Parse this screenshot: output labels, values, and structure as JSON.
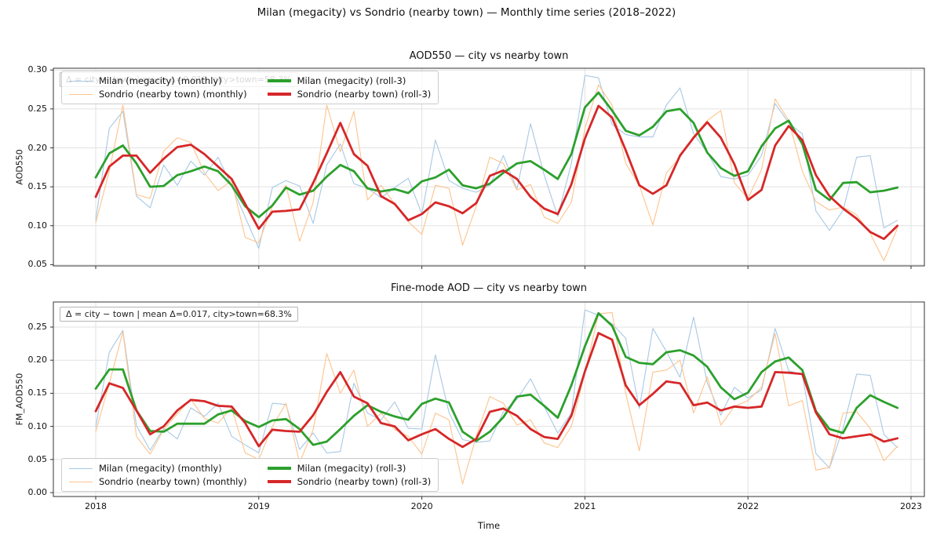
{
  "chart_data": {
    "type": "line",
    "suptitle": "Milan (megacity) vs Sondrio (nearby town) — Monthly time series (2018–2022)",
    "xlabel": "Time",
    "x": {
      "start": "2018-01",
      "freq": "monthly",
      "n": 60
    },
    "xticks": [
      "2018",
      "2019",
      "2020",
      "2021",
      "2022",
      "2023"
    ],
    "grid": true,
    "legend_entries": [
      "Milan (megacity) (monthly)",
      "Sondrio (nearby town) (monthly)",
      "Milan (megacity) (roll-3)",
      "Sondrio (nearby town) (roll-3)"
    ],
    "colors": {
      "milan_monthly": "#a8c8e4",
      "sondrio_monthly": "#fdc38d",
      "milan_roll3": "#2ca02c",
      "sondrio_roll3": "#d62728"
    },
    "charts": [
      {
        "key": "aod550",
        "title": "AOD550 — city vs nearby town",
        "ylabel": "AOD550",
        "yticks": [
          0.05,
          0.1,
          0.15,
          0.2,
          0.25,
          0.3
        ],
        "legend_position": "upper-left",
        "annotation": "Δ = city − town | mean Δ=0.015, city>town=58.3%",
        "annotation_note": "partially hidden behind legend",
        "series": [
          {
            "name": "Milan (megacity) (monthly)",
            "color_key": "milan_monthly",
            "width": 1.1,
            "values": [
              0.108,
              0.225,
              0.247,
              0.138,
              0.123,
              0.178,
              0.152,
              0.183,
              0.165,
              0.188,
              0.151,
              0.111,
              0.071,
              0.149,
              0.158,
              0.151,
              0.103,
              0.178,
              0.205,
              0.154,
              0.148,
              0.136,
              0.149,
              0.161,
              0.115,
              0.21,
              0.158,
              0.148,
              0.143,
              0.152,
              0.19,
              0.147,
              0.231,
              0.165,
              0.112,
              0.18,
              0.293,
              0.29,
              0.23,
              0.217,
              0.214,
              0.214,
              0.255,
              0.277,
              0.218,
              0.194,
              0.163,
              0.16,
              0.165,
              0.19,
              0.257,
              0.232,
              0.218,
              0.119,
              0.094,
              0.12,
              0.188,
              0.19,
              0.097,
              0.107
            ]
          },
          {
            "name": "Sondrio (nearby town) (monthly)",
            "color_key": "sondrio_monthly",
            "width": 1.1,
            "values": [
              0.104,
              0.17,
              0.255,
              0.14,
              0.135,
              0.196,
              0.213,
              0.207,
              0.168,
              0.145,
              0.158,
              0.085,
              0.078,
              0.125,
              0.152,
              0.08,
              0.13,
              0.255,
              0.195,
              0.247,
              0.133,
              0.152,
              0.128,
              0.105,
              0.089,
              0.152,
              0.148,
              0.075,
              0.125,
              0.188,
              0.18,
              0.146,
              0.153,
              0.111,
              0.103,
              0.13,
              0.225,
              0.281,
              0.255,
              0.18,
              0.152,
              0.101,
              0.168,
              0.188,
              0.215,
              0.235,
              0.248,
              0.155,
              0.135,
              0.172,
              0.263,
              0.235,
              0.17,
              0.131,
              0.12,
              0.124,
              0.114,
              0.09,
              0.055,
              0.097
            ]
          },
          {
            "name": "Milan (megacity) (roll-3)",
            "color_key": "milan_roll3",
            "width": 2.8,
            "values": [
              0.162,
              0.193,
              0.203,
              0.18,
              0.15,
              0.151,
              0.165,
              0.17,
              0.176,
              0.17,
              0.152,
              0.125,
              0.111,
              0.126,
              0.149,
              0.14,
              0.145,
              0.163,
              0.178,
              0.17,
              0.148,
              0.144,
              0.147,
              0.142,
              0.157,
              0.162,
              0.172,
              0.152,
              0.148,
              0.154,
              0.168,
              0.18,
              0.183,
              0.172,
              0.16,
              0.192,
              0.252,
              0.271,
              0.248,
              0.222,
              0.216,
              0.227,
              0.247,
              0.25,
              0.232,
              0.194,
              0.174,
              0.164,
              0.17,
              0.202,
              0.225,
              0.235,
              0.205,
              0.146,
              0.133,
              0.155,
              0.156,
              0.143,
              0.145,
              0.149
            ]
          },
          {
            "name": "Sondrio (nearby town) (roll-3)",
            "color_key": "sondrio_roll3",
            "width": 2.8,
            "values": [
              0.137,
              0.176,
              0.19,
              0.19,
              0.168,
              0.186,
              0.201,
              0.204,
              0.192,
              0.176,
              0.16,
              0.128,
              0.096,
              0.118,
              0.119,
              0.121,
              0.155,
              0.193,
              0.232,
              0.192,
              0.177,
              0.138,
              0.128,
              0.107,
              0.115,
              0.13,
              0.125,
              0.116,
              0.129,
              0.164,
              0.171,
              0.16,
              0.137,
              0.122,
              0.115,
              0.153,
              0.212,
              0.254,
              0.239,
              0.197,
              0.152,
              0.141,
              0.152,
              0.19,
              0.213,
              0.233,
              0.213,
              0.179,
              0.133,
              0.146,
              0.203,
              0.228,
              0.21,
              0.165,
              0.138,
              0.122,
              0.109,
              0.092,
              0.083,
              0.1
            ]
          }
        ]
      },
      {
        "key": "fm_aod550",
        "title": "Fine-mode AOD — city vs nearby town",
        "ylabel": "FM_AOD550",
        "yticks": [
          0.0,
          0.05,
          0.1,
          0.15,
          0.2,
          0.25
        ],
        "legend_position": "lower-left",
        "annotation": "Δ = city − town | mean Δ=0.017, city>town=68.3%",
        "annotation_note": "fully visible, upper-left",
        "series": [
          {
            "name": "Milan (megacity) (monthly)",
            "color_key": "milan_monthly",
            "width": 1.1,
            "values": [
              0.099,
              0.212,
              0.245,
              0.101,
              0.064,
              0.097,
              0.081,
              0.128,
              0.115,
              0.135,
              0.085,
              0.072,
              0.06,
              0.135,
              0.133,
              0.065,
              0.09,
              0.06,
              0.062,
              0.165,
              0.12,
              0.11,
              0.137,
              0.097,
              0.096,
              0.208,
              0.121,
              0.08,
              0.076,
              0.078,
              0.122,
              0.141,
              0.172,
              0.13,
              0.09,
              0.12,
              0.276,
              0.268,
              0.255,
              0.233,
              0.127,
              0.248,
              0.213,
              0.174,
              0.265,
              0.166,
              0.117,
              0.159,
              0.143,
              0.155,
              0.248,
              0.184,
              0.178,
              0.059,
              0.037,
              0.097,
              0.179,
              0.177,
              0.088,
              0.068
            ]
          },
          {
            "name": "Sondrio (nearby town) (monthly)",
            "color_key": "sondrio_monthly",
            "width": 1.1,
            "values": [
              0.092,
              0.165,
              0.243,
              0.085,
              0.058,
              0.095,
              0.119,
              0.141,
              0.112,
              0.105,
              0.128,
              0.06,
              0.05,
              0.1,
              0.135,
              0.045,
              0.095,
              0.21,
              0.15,
              0.185,
              0.1,
              0.12,
              0.095,
              0.085,
              0.058,
              0.12,
              0.11,
              0.013,
              0.085,
              0.145,
              0.135,
              0.102,
              0.11,
              0.075,
              0.068,
              0.1,
              0.18,
              0.27,
              0.272,
              0.15,
              0.063,
              0.182,
              0.185,
              0.2,
              0.12,
              0.175,
              0.102,
              0.13,
              0.139,
              0.159,
              0.24,
              0.131,
              0.139,
              0.034,
              0.038,
              0.12,
              0.122,
              0.097,
              0.048,
              0.07
            ]
          },
          {
            "name": "Milan (megacity) (roll-3)",
            "color_key": "milan_roll3",
            "width": 2.8,
            "values": [
              0.157,
              0.186,
              0.186,
              0.124,
              0.093,
              0.092,
              0.104,
              0.104,
              0.104,
              0.118,
              0.124,
              0.108,
              0.099,
              0.109,
              0.111,
              0.096,
              0.072,
              0.077,
              0.096,
              0.116,
              0.132,
              0.122,
              0.115,
              0.11,
              0.134,
              0.142,
              0.136,
              0.092,
              0.078,
              0.092,
              0.114,
              0.145,
              0.148,
              0.131,
              0.113,
              0.162,
              0.221,
              0.271,
              0.252,
              0.205,
              0.196,
              0.194,
              0.212,
              0.215,
              0.207,
              0.19,
              0.159,
              0.141,
              0.151,
              0.182,
              0.198,
              0.204,
              0.185,
              0.123,
              0.096,
              0.09,
              0.128,
              0.147,
              0.137,
              0.128
            ]
          },
          {
            "name": "Sondrio (nearby town) (roll-3)",
            "color_key": "sondrio_roll3",
            "width": 2.8,
            "values": [
              0.123,
              0.165,
              0.158,
              0.124,
              0.088,
              0.1,
              0.124,
              0.14,
              0.138,
              0.131,
              0.13,
              0.105,
              0.07,
              0.095,
              0.093,
              0.092,
              0.117,
              0.152,
              0.182,
              0.145,
              0.135,
              0.105,
              0.1,
              0.079,
              0.088,
              0.096,
              0.081,
              0.069,
              0.081,
              0.122,
              0.127,
              0.116,
              0.096,
              0.084,
              0.081,
              0.116,
              0.183,
              0.241,
              0.231,
              0.162,
              0.132,
              0.149,
              0.168,
              0.165,
              0.132,
              0.136,
              0.124,
              0.13,
              0.128,
              0.13,
              0.182,
              0.181,
              0.179,
              0.121,
              0.088,
              0.082,
              0.085,
              0.088,
              0.077,
              0.082
            ]
          }
        ]
      }
    ]
  }
}
